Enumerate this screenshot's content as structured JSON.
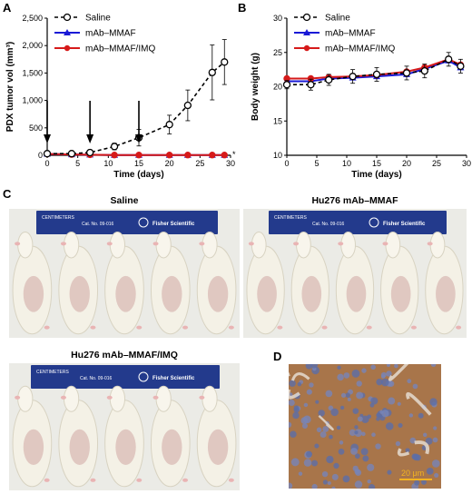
{
  "panels": {
    "A": "A",
    "B": "B",
    "C": "C",
    "D": "D"
  },
  "chart_data": [
    {
      "type": "line",
      "panel": "A",
      "xlabel": "Time (days)",
      "ylabel": "PDX tumor vol (mm³)",
      "xlim": [
        0,
        30
      ],
      "ylim": [
        0,
        2500
      ],
      "xticks": [
        0,
        5,
        10,
        15,
        20,
        25,
        30
      ],
      "yticks": [
        0,
        500,
        1000,
        1500,
        2000,
        2500
      ],
      "ytick_labels": [
        "0",
        "500",
        "1,000",
        "1,500",
        "2,000",
        "2,500"
      ],
      "legend_position": "top-left",
      "arrows_at_days": [
        0,
        7,
        15
      ],
      "annotation": "*",
      "series": [
        {
          "name": "Saline",
          "color": "#000000",
          "marker": "open-circle",
          "dashed": true,
          "x": [
            0,
            4,
            7,
            11,
            15,
            20,
            23,
            27,
            29
          ],
          "y": [
            30,
            30,
            50,
            160,
            320,
            560,
            910,
            1510,
            1700
          ],
          "err": [
            20,
            20,
            30,
            60,
            150,
            170,
            280,
            500,
            410
          ]
        },
        {
          "name": "mAb–MMAF",
          "color": "#1a1ad6",
          "marker": "triangle",
          "dashed": false,
          "x": [
            0,
            4,
            7,
            11,
            15,
            20,
            23,
            27,
            29
          ],
          "y": [
            25,
            15,
            10,
            5,
            5,
            5,
            5,
            5,
            5
          ]
        },
        {
          "name": "mAb–MMAF/IMQ",
          "color": "#d61a1a",
          "marker": "filled-circle",
          "dashed": false,
          "x": [
            0,
            4,
            7,
            11,
            15,
            20,
            23,
            27,
            29
          ],
          "y": [
            25,
            15,
            10,
            5,
            5,
            5,
            5,
            5,
            5
          ]
        }
      ]
    },
    {
      "type": "line",
      "panel": "B",
      "xlabel": "Time (days)",
      "ylabel": "Body weight (g)",
      "xlim": [
        0,
        30
      ],
      "ylim": [
        10,
        30
      ],
      "xticks": [
        0,
        5,
        10,
        15,
        20,
        25,
        30
      ],
      "yticks": [
        10,
        15,
        20,
        25,
        30
      ],
      "legend_position": "top-left",
      "series": [
        {
          "name": "Saline",
          "color": "#000000",
          "marker": "open-circle",
          "dashed": true,
          "x": [
            0,
            4,
            7,
            11,
            15,
            20,
            23,
            27,
            29
          ],
          "y": [
            20.3,
            20.3,
            21.0,
            21.5,
            21.8,
            22.0,
            22.3,
            24.0,
            23.0
          ],
          "err": [
            0.6,
            0.8,
            0.8,
            1.0,
            1.0,
            1.0,
            1.0,
            1.0,
            1.0
          ]
        },
        {
          "name": "mAb–MMAF",
          "color": "#1a1ad6",
          "marker": "triangle",
          "dashed": false,
          "x": [
            0,
            4,
            7,
            11,
            15,
            20,
            23,
            27,
            29
          ],
          "y": [
            20.8,
            20.8,
            21.2,
            21.3,
            21.5,
            21.8,
            22.6,
            23.8,
            22.8
          ]
        },
        {
          "name": "mAb–MMAF/IMQ",
          "color": "#d61a1a",
          "marker": "filled-circle",
          "dashed": false,
          "x": [
            0,
            4,
            7,
            11,
            15,
            20,
            23,
            27,
            29
          ],
          "y": [
            21.2,
            21.2,
            21.4,
            21.5,
            21.7,
            22.2,
            22.8,
            24.0,
            23.2
          ]
        }
      ]
    }
  ],
  "photos": {
    "saline": {
      "title": "Saline",
      "ruler_brand": "Fisher Scientific",
      "ruler_cat": "Cat. No. 09-016",
      "ruler_unit": "CENTIMETERS",
      "mice": 5
    },
    "mmaf": {
      "title": "Hu276 mAb–MMAF",
      "ruler_brand": "Fisher Scientific",
      "ruler_cat": "Cat. No. 09-016",
      "ruler_unit": "CENTIMETERS",
      "mice": 5
    },
    "imq": {
      "title": "Hu276 mAb–MMAF/IMQ",
      "ruler_brand": "Fisher Scientific",
      "ruler_cat": "Cat. No. 09-016",
      "ruler_unit": "CENTIMETERS",
      "mice": 5
    }
  },
  "histology": {
    "scale_bar": "20 μm"
  }
}
